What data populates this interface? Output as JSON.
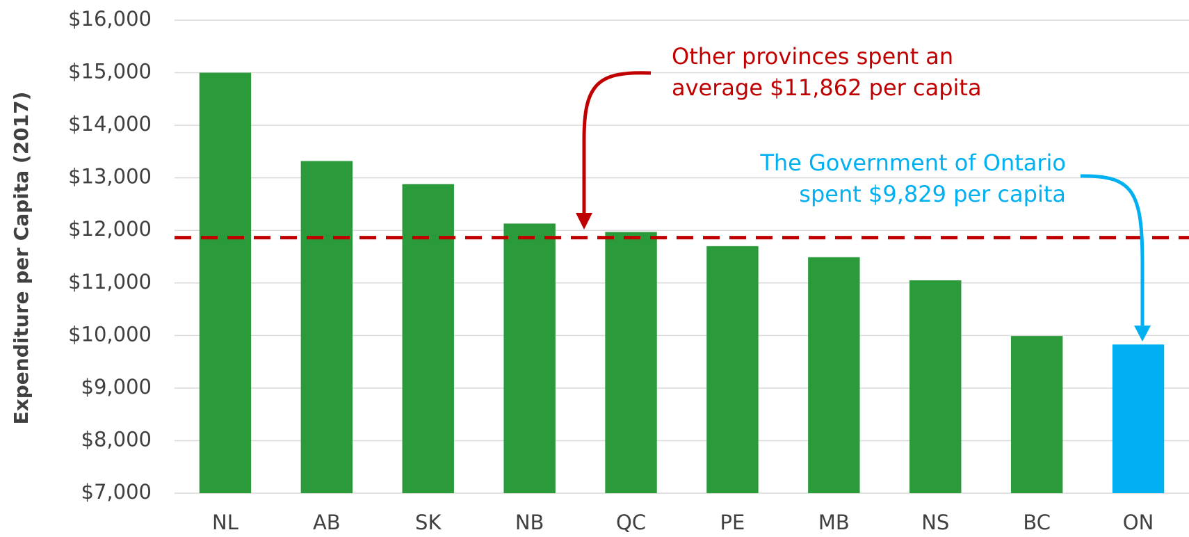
{
  "chart_data": {
    "type": "bar",
    "y_axis_label": "Expenditure per Capita (2017)",
    "categories": [
      "NL",
      "AB",
      "SK",
      "NB",
      "QC",
      "PE",
      "MB",
      "NS",
      "BC",
      "ON"
    ],
    "values": [
      15000,
      13320,
      12880,
      12130,
      11970,
      11700,
      11490,
      11050,
      9990,
      9829
    ],
    "colors": [
      "#2a9a3a",
      "#2a9a3a",
      "#2a9a3a",
      "#2a9a3a",
      "#2a9a3a",
      "#2a9a3a",
      "#2a9a3a",
      "#2a9a3a",
      "#2a9a3a",
      "#00b0f0"
    ],
    "ylim": [
      7000,
      16000
    ],
    "yticks": [
      {
        "value": 7000,
        "label": "$7,000"
      },
      {
        "value": 8000,
        "label": "$8,000"
      },
      {
        "value": 9000,
        "label": "$9,000"
      },
      {
        "value": 10000,
        "label": "$10,000"
      },
      {
        "value": 11000,
        "label": "$11,000"
      },
      {
        "value": 12000,
        "label": "$12,000"
      },
      {
        "value": 13000,
        "label": "$13,000"
      },
      {
        "value": 14000,
        "label": "$14,000"
      },
      {
        "value": 15000,
        "label": "$15,000"
      },
      {
        "value": 16000,
        "label": "$16,000"
      }
    ],
    "grid": true,
    "average": 11862,
    "average_color": "#c00000",
    "annotations": [
      {
        "lines": [
          "Other provinces spent an",
          "average $11,862 per capita"
        ],
        "color": "#c00000"
      },
      {
        "lines": [
          "The Government of Ontario",
          "spent $9,829 per capita"
        ],
        "color": "#00b0f0"
      }
    ]
  }
}
